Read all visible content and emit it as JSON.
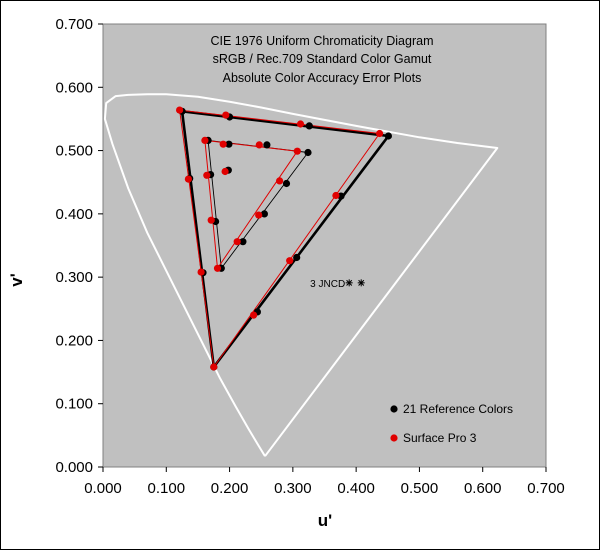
{
  "chart_data": {
    "type": "scatter",
    "title": [
      "CIE 1976 Uniform Chromaticity Diagram",
      "sRGB / Rec.709 Standard Color Gamut",
      "Absolute Color Accuracy Error Plots"
    ],
    "xlabel": "u'",
    "ylabel": "v'",
    "xlim": [
      0.0,
      0.7
    ],
    "ylim": [
      0.0,
      0.7
    ],
    "xticks": [
      "0.000",
      "0.100",
      "0.200",
      "0.300",
      "0.400",
      "0.500",
      "0.600",
      "0.700"
    ],
    "yticks": [
      "0.000",
      "0.100",
      "0.200",
      "0.300",
      "0.400",
      "0.500",
      "0.600",
      "0.700"
    ],
    "grid": false,
    "plot_background": "#c0c0c0",
    "legend_position": "bottom-right",
    "annotation": {
      "text": "3 JNCD",
      "u": 0.393,
      "v": 0.291,
      "marker_u": [
        0.389,
        0.408
      ]
    },
    "spectral_locus": [
      [
        0.256,
        0.017
      ],
      [
        0.245,
        0.035
      ],
      [
        0.23,
        0.06
      ],
      [
        0.21,
        0.095
      ],
      [
        0.185,
        0.14
      ],
      [
        0.16,
        0.19
      ],
      [
        0.13,
        0.25
      ],
      [
        0.1,
        0.31
      ],
      [
        0.07,
        0.37
      ],
      [
        0.04,
        0.44
      ],
      [
        0.015,
        0.51
      ],
      [
        0.003,
        0.55
      ],
      [
        0.005,
        0.575
      ],
      [
        0.02,
        0.586
      ],
      [
        0.04,
        0.588
      ],
      [
        0.07,
        0.589
      ],
      [
        0.1,
        0.589
      ],
      [
        0.15,
        0.585
      ],
      [
        0.2,
        0.577
      ],
      [
        0.25,
        0.568
      ],
      [
        0.3,
        0.558
      ],
      [
        0.4,
        0.539
      ],
      [
        0.5,
        0.521
      ],
      [
        0.56,
        0.512
      ],
      [
        0.623,
        0.504
      ],
      [
        0.256,
        0.017
      ]
    ],
    "series": [
      {
        "name": "21 Reference Colors",
        "color": "#000000",
        "points": [
          [
            0.451,
            0.523
          ],
          [
            0.376,
            0.428
          ],
          [
            0.306,
            0.331
          ],
          [
            0.244,
            0.245
          ],
          [
            0.175,
            0.158
          ],
          [
            0.158,
            0.307
          ],
          [
            0.137,
            0.456
          ],
          [
            0.125,
            0.562
          ],
          [
            0.2,
            0.553
          ],
          [
            0.326,
            0.539
          ],
          [
            0.166,
            0.516
          ],
          [
            0.199,
            0.51
          ],
          [
            0.259,
            0.509
          ],
          [
            0.324,
            0.497
          ],
          [
            0.29,
            0.448
          ],
          [
            0.255,
            0.4
          ],
          [
            0.221,
            0.356
          ],
          [
            0.187,
            0.314
          ],
          [
            0.178,
            0.388
          ],
          [
            0.17,
            0.462
          ],
          [
            0.198,
            0.469
          ]
        ],
        "outer": [
          [
            0.451,
            0.523
          ],
          [
            0.175,
            0.158
          ],
          [
            0.125,
            0.562
          ],
          [
            0.451,
            0.523
          ]
        ],
        "inner": [
          [
            0.324,
            0.497
          ],
          [
            0.187,
            0.314
          ],
          [
            0.166,
            0.516
          ],
          [
            0.324,
            0.497
          ]
        ]
      },
      {
        "name": "Surface Pro 3",
        "color": "#e00000",
        "points": [
          [
            0.437,
            0.527
          ],
          [
            0.368,
            0.429
          ],
          [
            0.295,
            0.326
          ],
          [
            0.238,
            0.24
          ],
          [
            0.175,
            0.158
          ],
          [
            0.155,
            0.308
          ],
          [
            0.135,
            0.455
          ],
          [
            0.121,
            0.564
          ],
          [
            0.194,
            0.556
          ],
          [
            0.312,
            0.542
          ],
          [
            0.161,
            0.516
          ],
          [
            0.19,
            0.51
          ],
          [
            0.247,
            0.509
          ],
          [
            0.307,
            0.499
          ],
          [
            0.279,
            0.452
          ],
          [
            0.246,
            0.398
          ],
          [
            0.212,
            0.356
          ],
          [
            0.181,
            0.314
          ],
          [
            0.171,
            0.39
          ],
          [
            0.164,
            0.461
          ],
          [
            0.193,
            0.467
          ]
        ],
        "outer": [
          [
            0.437,
            0.527
          ],
          [
            0.175,
            0.158
          ],
          [
            0.121,
            0.564
          ],
          [
            0.437,
            0.527
          ]
        ],
        "inner": [
          [
            0.307,
            0.499
          ],
          [
            0.181,
            0.314
          ],
          [
            0.161,
            0.516
          ],
          [
            0.307,
            0.499
          ]
        ]
      }
    ]
  }
}
